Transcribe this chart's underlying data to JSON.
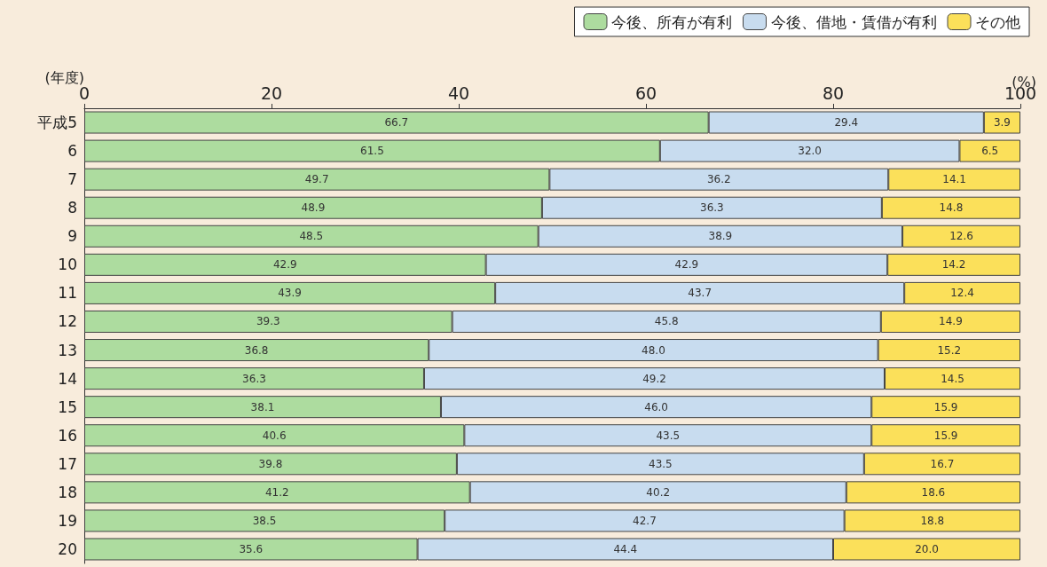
{
  "chart_data": {
    "type": "bar",
    "orientation": "horizontal",
    "stacked": true,
    "xlabel": "(%)",
    "ylabel": "(年度)",
    "categories": [
      "平成5",
      "6",
      "7",
      "8",
      "9",
      "10",
      "11",
      "12",
      "13",
      "14",
      "15",
      "16",
      "17",
      "18",
      "19",
      "20"
    ],
    "xlim": [
      0,
      100
    ],
    "xticks": [
      0,
      20,
      40,
      60,
      80,
      100
    ],
    "grid": false,
    "legend": "top right",
    "series": [
      {
        "name": "今後、所有が有利",
        "color": "#addc9f",
        "values": [
          66.7,
          61.5,
          49.7,
          48.9,
          48.5,
          42.9,
          43.9,
          39.3,
          36.8,
          36.3,
          38.1,
          40.6,
          39.8,
          41.2,
          38.5,
          35.6
        ],
        "value_labels": [
          "66.7",
          "61.5",
          "49.7",
          "48.9",
          "48.5",
          "42.9",
          "43.9",
          "39.3",
          "36.8",
          "36.3",
          "38.1",
          "40.6",
          "39.8",
          "41.2",
          "38.5",
          "35.6"
        ]
      },
      {
        "name": "今後、借地・賃借が有利",
        "color": "#c8dcef",
        "values": [
          29.4,
          32.0,
          36.2,
          36.3,
          38.9,
          42.9,
          43.7,
          45.8,
          48.0,
          49.2,
          46.0,
          43.5,
          43.5,
          40.2,
          42.7,
          44.4
        ],
        "value_labels": [
          "29.4",
          "32.0",
          "36.2",
          "36.3",
          "38.9",
          "42.9",
          "43.7",
          "45.8",
          "48.0",
          "49.2",
          "46.0",
          "43.5",
          "43.5",
          "40.2",
          "42.7",
          "44.4"
        ]
      },
      {
        "name": "その他",
        "color": "#fbe05a",
        "values": [
          3.9,
          6.5,
          14.1,
          14.8,
          12.6,
          14.2,
          12.4,
          14.9,
          15.2,
          14.5,
          15.9,
          15.9,
          16.7,
          18.6,
          18.8,
          20.0
        ],
        "value_labels": [
          "3.9",
          "6.5",
          "14.1",
          "14.8",
          "12.6",
          "14.2",
          "12.4",
          "14.9",
          "15.2",
          "14.5",
          "15.9",
          "15.9",
          "16.7",
          "18.6",
          "18.8",
          "20.0"
        ]
      }
    ]
  }
}
